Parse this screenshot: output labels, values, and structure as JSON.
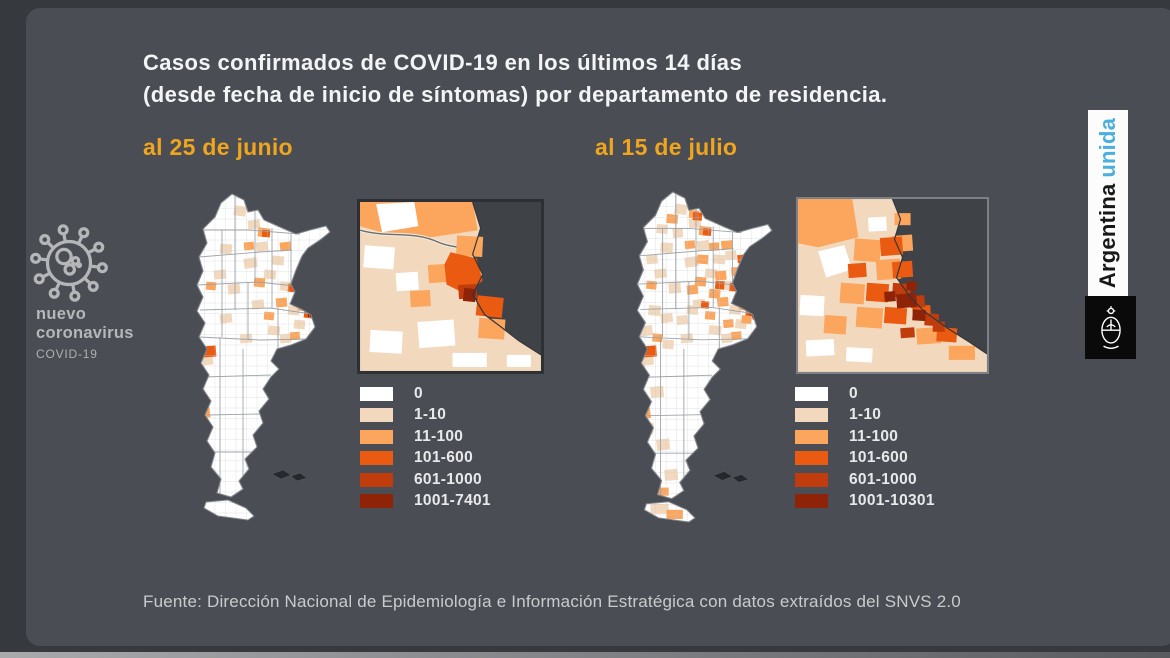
{
  "header": {
    "title_line1": "Casos confirmados de COVID-19 en los últimos 14 días",
    "title_line2": "(desde fecha de inicio de síntomas) por departamento de residencia."
  },
  "panels": [
    {
      "date_label": "al 25 de junio",
      "legend": [
        {
          "label": "0",
          "color": "#ffffff"
        },
        {
          "label": "1-10",
          "color": "#f2d8bd"
        },
        {
          "label": "11-100",
          "color": "#fba55d"
        },
        {
          "label": "101-600",
          "color": "#ea5a10"
        },
        {
          "label": "601-1000",
          "color": "#c03c0c"
        },
        {
          "label": "1001-7401",
          "color": "#8e2307"
        }
      ]
    },
    {
      "date_label": "al 15 de julio",
      "legend": [
        {
          "label": "0",
          "color": "#ffffff"
        },
        {
          "label": "1-10",
          "color": "#f2d8bd"
        },
        {
          "label": "11-100",
          "color": "#fba55d"
        },
        {
          "label": "101-600",
          "color": "#ea5a10"
        },
        {
          "label": "601-1000",
          "color": "#c03c0c"
        },
        {
          "label": "1001-10301",
          "color": "#8e2307"
        }
      ]
    }
  ],
  "branding": {
    "virus_label_line1": "nuevo",
    "virus_label_line2": "coronavirus",
    "virus_label_line3": "COVID-19",
    "wordmark_primary": "Argentina",
    "wordmark_accent": "unida"
  },
  "footer": {
    "source": "Fuente: Dirección Nacional de Epidemiología e Información Estratégica con datos extraídos del SNVS 2.0"
  },
  "palette": {
    "background": "#36393e",
    "panel": "#4a4e54",
    "accent_date": "#efa51d",
    "wordmark_blue": "#4aaede",
    "water": "#3f4247",
    "bins": [
      "#ffffff",
      "#f2d8bd",
      "#fba55d",
      "#ea5a10",
      "#c03c0c",
      "#8e2307"
    ]
  },
  "chart_data": [
    {
      "type": "choropleth",
      "title": "al 25 de junio",
      "geography": "Argentina, por departamento de residencia",
      "metric": "Casos confirmados de COVID-19 en los últimos 14 días (desde fecha de inicio de síntomas)",
      "inset": "Área Metropolitana de Buenos Aires",
      "legend_position": "bottom-right",
      "bins": [
        {
          "range": "0",
          "color": "#ffffff"
        },
        {
          "range": "1-10",
          "color": "#f2d8bd"
        },
        {
          "range": "11-100",
          "color": "#fba55d"
        },
        {
          "range": "101-600",
          "color": "#ea5a10"
        },
        {
          "range": "601-1000",
          "color": "#c03c0c"
        },
        {
          "range": "1001-7401",
          "color": "#8e2307"
        }
      ],
      "max_value": 7401
    },
    {
      "type": "choropleth",
      "title": "al 15 de julio",
      "geography": "Argentina, por departamento de residencia",
      "metric": "Casos confirmados de COVID-19 en los últimos 14 días (desde fecha de inicio de síntomas)",
      "inset": "Área Metropolitana de Buenos Aires",
      "legend_position": "bottom-right",
      "bins": [
        {
          "range": "0",
          "color": "#ffffff"
        },
        {
          "range": "1-10",
          "color": "#f2d8bd"
        },
        {
          "range": "11-100",
          "color": "#fba55d"
        },
        {
          "range": "101-600",
          "color": "#ea5a10"
        },
        {
          "range": "601-1000",
          "color": "#c03c0c"
        },
        {
          "range": "1001-10301",
          "color": "#8e2307"
        }
      ],
      "max_value": 10301
    }
  ]
}
